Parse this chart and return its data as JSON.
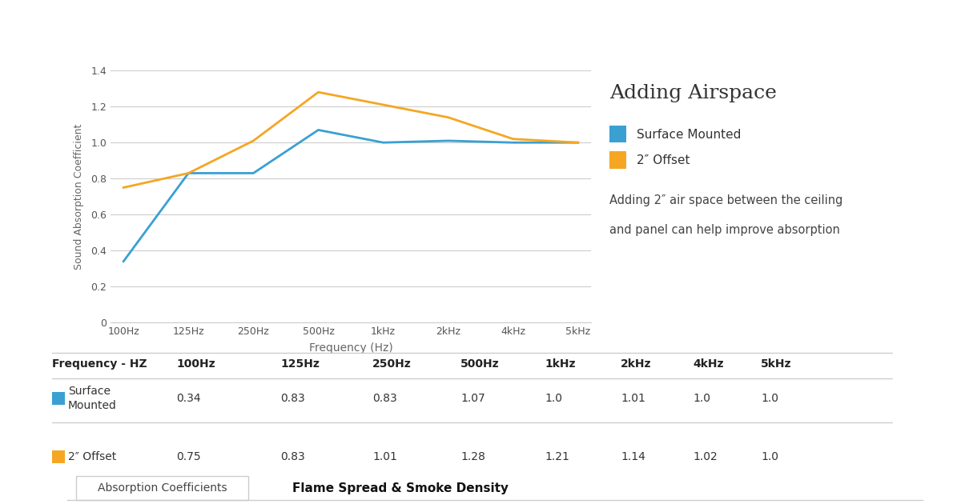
{
  "title_tab1": "Absorption Coefficients",
  "title_tab2": "Flame Spread & Smoke Density",
  "frequencies": [
    "100Hz",
    "125Hz",
    "250Hz",
    "500Hz",
    "1kHz",
    "2kHz",
    "4kHz",
    "5kHz"
  ],
  "x_positions": [
    0,
    1,
    2,
    3,
    4,
    5,
    6,
    7
  ],
  "surface_mounted": [
    0.34,
    0.83,
    0.83,
    1.07,
    1.0,
    1.01,
    1.0,
    1.0
  ],
  "offset_2inch": [
    0.75,
    0.83,
    1.01,
    1.28,
    1.21,
    1.14,
    1.02,
    1.0
  ],
  "surface_color": "#3aa0d2",
  "offset_color": "#f5a623",
  "ylabel": "Sound Absorption Coefficient",
  "xlabel": "Frequency (Hz)",
  "ylim": [
    0,
    1.4
  ],
  "yticks": [
    0,
    0.2,
    0.4,
    0.6,
    0.8,
    1.0,
    1.2,
    1.4
  ],
  "bg_color": "#ffffff",
  "panel_bg": "#eeeeee",
  "adding_airspace_title": "Adding Airspace",
  "legend_label1": "Surface Mounted",
  "legend_label2": "2″ Offset",
  "description_line1": "Adding 2″ air space between the ceiling",
  "description_line2": "and panel can help improve absorption",
  "table_header": [
    "Frequency - HZ",
    "100Hz",
    "125Hz",
    "250Hz",
    "500Hz",
    "1kHz",
    "2kHz",
    "4kHz",
    "5kHz"
  ],
  "table_row1_label": "Surface\nMounted",
  "table_row2_label": "2″ Offset",
  "table_row1_values": [
    "0.34",
    "0.83",
    "0.83",
    "1.07",
    "1.0",
    "1.01",
    "1.0",
    "1.0"
  ],
  "table_row2_values": [
    "0.75",
    "0.83",
    "1.01",
    "1.28",
    "1.21",
    "1.14",
    "1.02",
    "1.0"
  ],
  "grid_color": "#cccccc",
  "tab_border_color": "#cccccc",
  "line_width": 2.0,
  "tab1_fontsize": 10,
  "tab2_fontsize": 11
}
